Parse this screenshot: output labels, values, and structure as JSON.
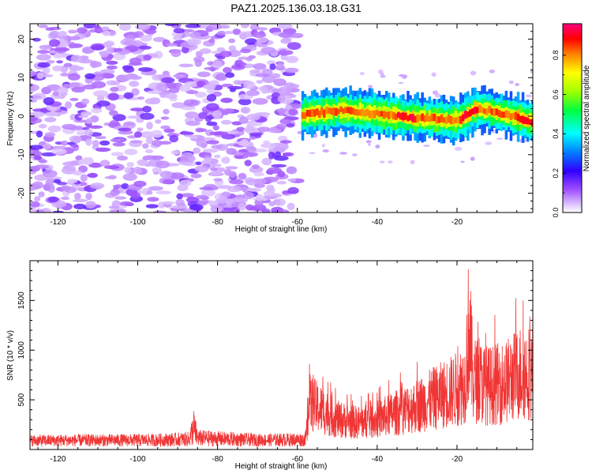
{
  "page": {
    "title": "PAZ1.2025.136.03.18.G31"
  },
  "colors": {
    "snr_line": "#f03535",
    "axis": "#000000",
    "background": "#ffffff"
  },
  "chart_data": [
    {
      "type": "heatmap",
      "title": "PAZ1.2025.136.03.18.G31",
      "xlabel": "Height of straight line (km)",
      "ylabel": "Frequency (Hz)",
      "xlim": [
        -127,
        -1
      ],
      "ylim": [
        -25,
        24
      ],
      "x_ticks": [
        -120,
        -100,
        -80,
        -60,
        -40,
        -20
      ],
      "y_ticks": [
        -20,
        -10,
        0,
        10,
        20
      ],
      "colorbar": {
        "label": "Normalized spectral amplitude",
        "range": [
          0,
          0.96
        ],
        "ticks": [
          0.0,
          0.2,
          0.4,
          0.6,
          0.8
        ],
        "colormap": "rainbow (magenta-blue-cyan-green-yellow-red-pink)"
      },
      "regions": [
        {
          "x_range": [
            -127,
            -60
          ],
          "description_level": "noise",
          "amplitude_range": [
            0.0,
            0.15
          ],
          "freq_spread": [
            -25,
            24
          ]
        },
        {
          "x_range": [
            -60,
            -1
          ],
          "description_level": "signal",
          "amplitude_range": [
            0.3,
            0.96
          ],
          "freq_center_track": [
            [
              -58,
              0.5
            ],
            [
              -50,
              1.5
            ],
            [
              -40,
              0.5
            ],
            [
              -30,
              -0.5
            ],
            [
              -20,
              -1.0
            ],
            [
              -15,
              2.0
            ],
            [
              -8,
              0.5
            ],
            [
              -1,
              -1.5
            ]
          ]
        }
      ],
      "grid": false,
      "legend": "colorbar-right"
    },
    {
      "type": "line",
      "xlabel": "Height of straight line (km)",
      "ylabel": "SNR (10 * v/v)",
      "xlim": [
        -127,
        -1
      ],
      "ylim": [
        0,
        1900
      ],
      "x_ticks": [
        -120,
        -100,
        -80,
        -60,
        -40,
        -20
      ],
      "y_ticks": [
        500,
        1000,
        1500
      ],
      "series": [
        {
          "envelope_points": [
            {
              "x": -127,
              "y": 150
            },
            {
              "x": -110,
              "y": 155
            },
            {
              "x": -95,
              "y": 160
            },
            {
              "x": -87,
              "y": 180
            },
            {
              "x": -86,
              "y": 420
            },
            {
              "x": -85,
              "y": 200
            },
            {
              "x": -70,
              "y": 160
            },
            {
              "x": -58,
              "y": 170
            },
            {
              "x": -57,
              "y": 700
            },
            {
              "x": -50,
              "y": 450
            },
            {
              "x": -45,
              "y": 400
            },
            {
              "x": -40,
              "y": 450
            },
            {
              "x": -35,
              "y": 550
            },
            {
              "x": -30,
              "y": 650
            },
            {
              "x": -25,
              "y": 780
            },
            {
              "x": -20,
              "y": 900
            },
            {
              "x": -18,
              "y": 1000
            },
            {
              "x": -17,
              "y": 1850
            },
            {
              "x": -16,
              "y": 1050
            },
            {
              "x": -12,
              "y": 950
            },
            {
              "x": -8,
              "y": 1000
            },
            {
              "x": -4,
              "y": 1150
            },
            {
              "x": -1,
              "y": 1150
            }
          ]
        }
      ],
      "grid": false,
      "legend": "none"
    }
  ]
}
